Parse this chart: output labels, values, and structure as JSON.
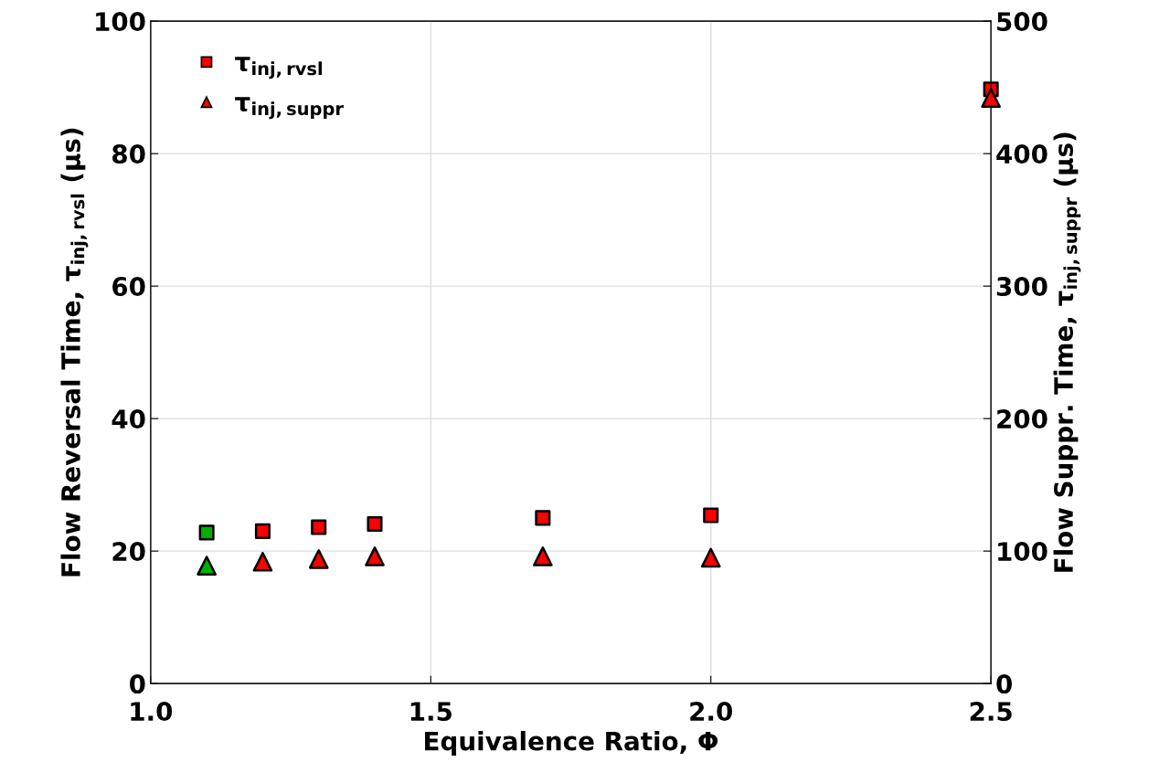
{
  "chart_data": {
    "type": "scatter",
    "xlabel": "Equivalence Ratio, Φ",
    "ylabel": "Flow Reversal Time, τ$_{inj,rvsl}$ (µs)",
    "y2label": "Flow Suppr. Time, τ$_{inj,suppr}$ (µs)",
    "x": [
      1.1,
      1.2,
      1.3,
      1.4,
      1.7,
      2.0,
      2.5
    ],
    "series": [
      {
        "name": "τ$_{inj,rvsl}$",
        "marker": "square",
        "colors": [
          "#00b000",
          "#ff0000",
          "#ff0000",
          "#ff0000",
          "#ff0000",
          "#ff0000",
          "#ff0000"
        ],
        "values": [
          22.8,
          23.0,
          23.6,
          24.1,
          25.0,
          25.4,
          89.7
        ]
      },
      {
        "name": "τ$_{inj,suppr}$",
        "marker": "triangle",
        "axis": "y2",
        "colors": [
          "#00b000",
          "#ff0000",
          "#ff0000",
          "#ff0000",
          "#ff0000",
          "#ff0000",
          "#ff0000"
        ],
        "values": [
          89,
          92,
          94,
          96,
          96,
          95,
          442
        ]
      }
    ],
    "xlim": [
      1.0,
      2.5
    ],
    "xticks": [
      {
        "value": 1.0,
        "label": "1.0"
      },
      1.5,
      {
        "value": 2.0,
        "label": "2.0"
      },
      2.5
    ],
    "ylim": [
      0,
      100
    ],
    "yticks": [
      0,
      20,
      40,
      60,
      80,
      100
    ],
    "y2lim": [
      0,
      500
    ],
    "y2ticks": [
      0,
      100,
      200,
      300,
      400,
      500
    ],
    "grid": true,
    "legend": "top left"
  }
}
